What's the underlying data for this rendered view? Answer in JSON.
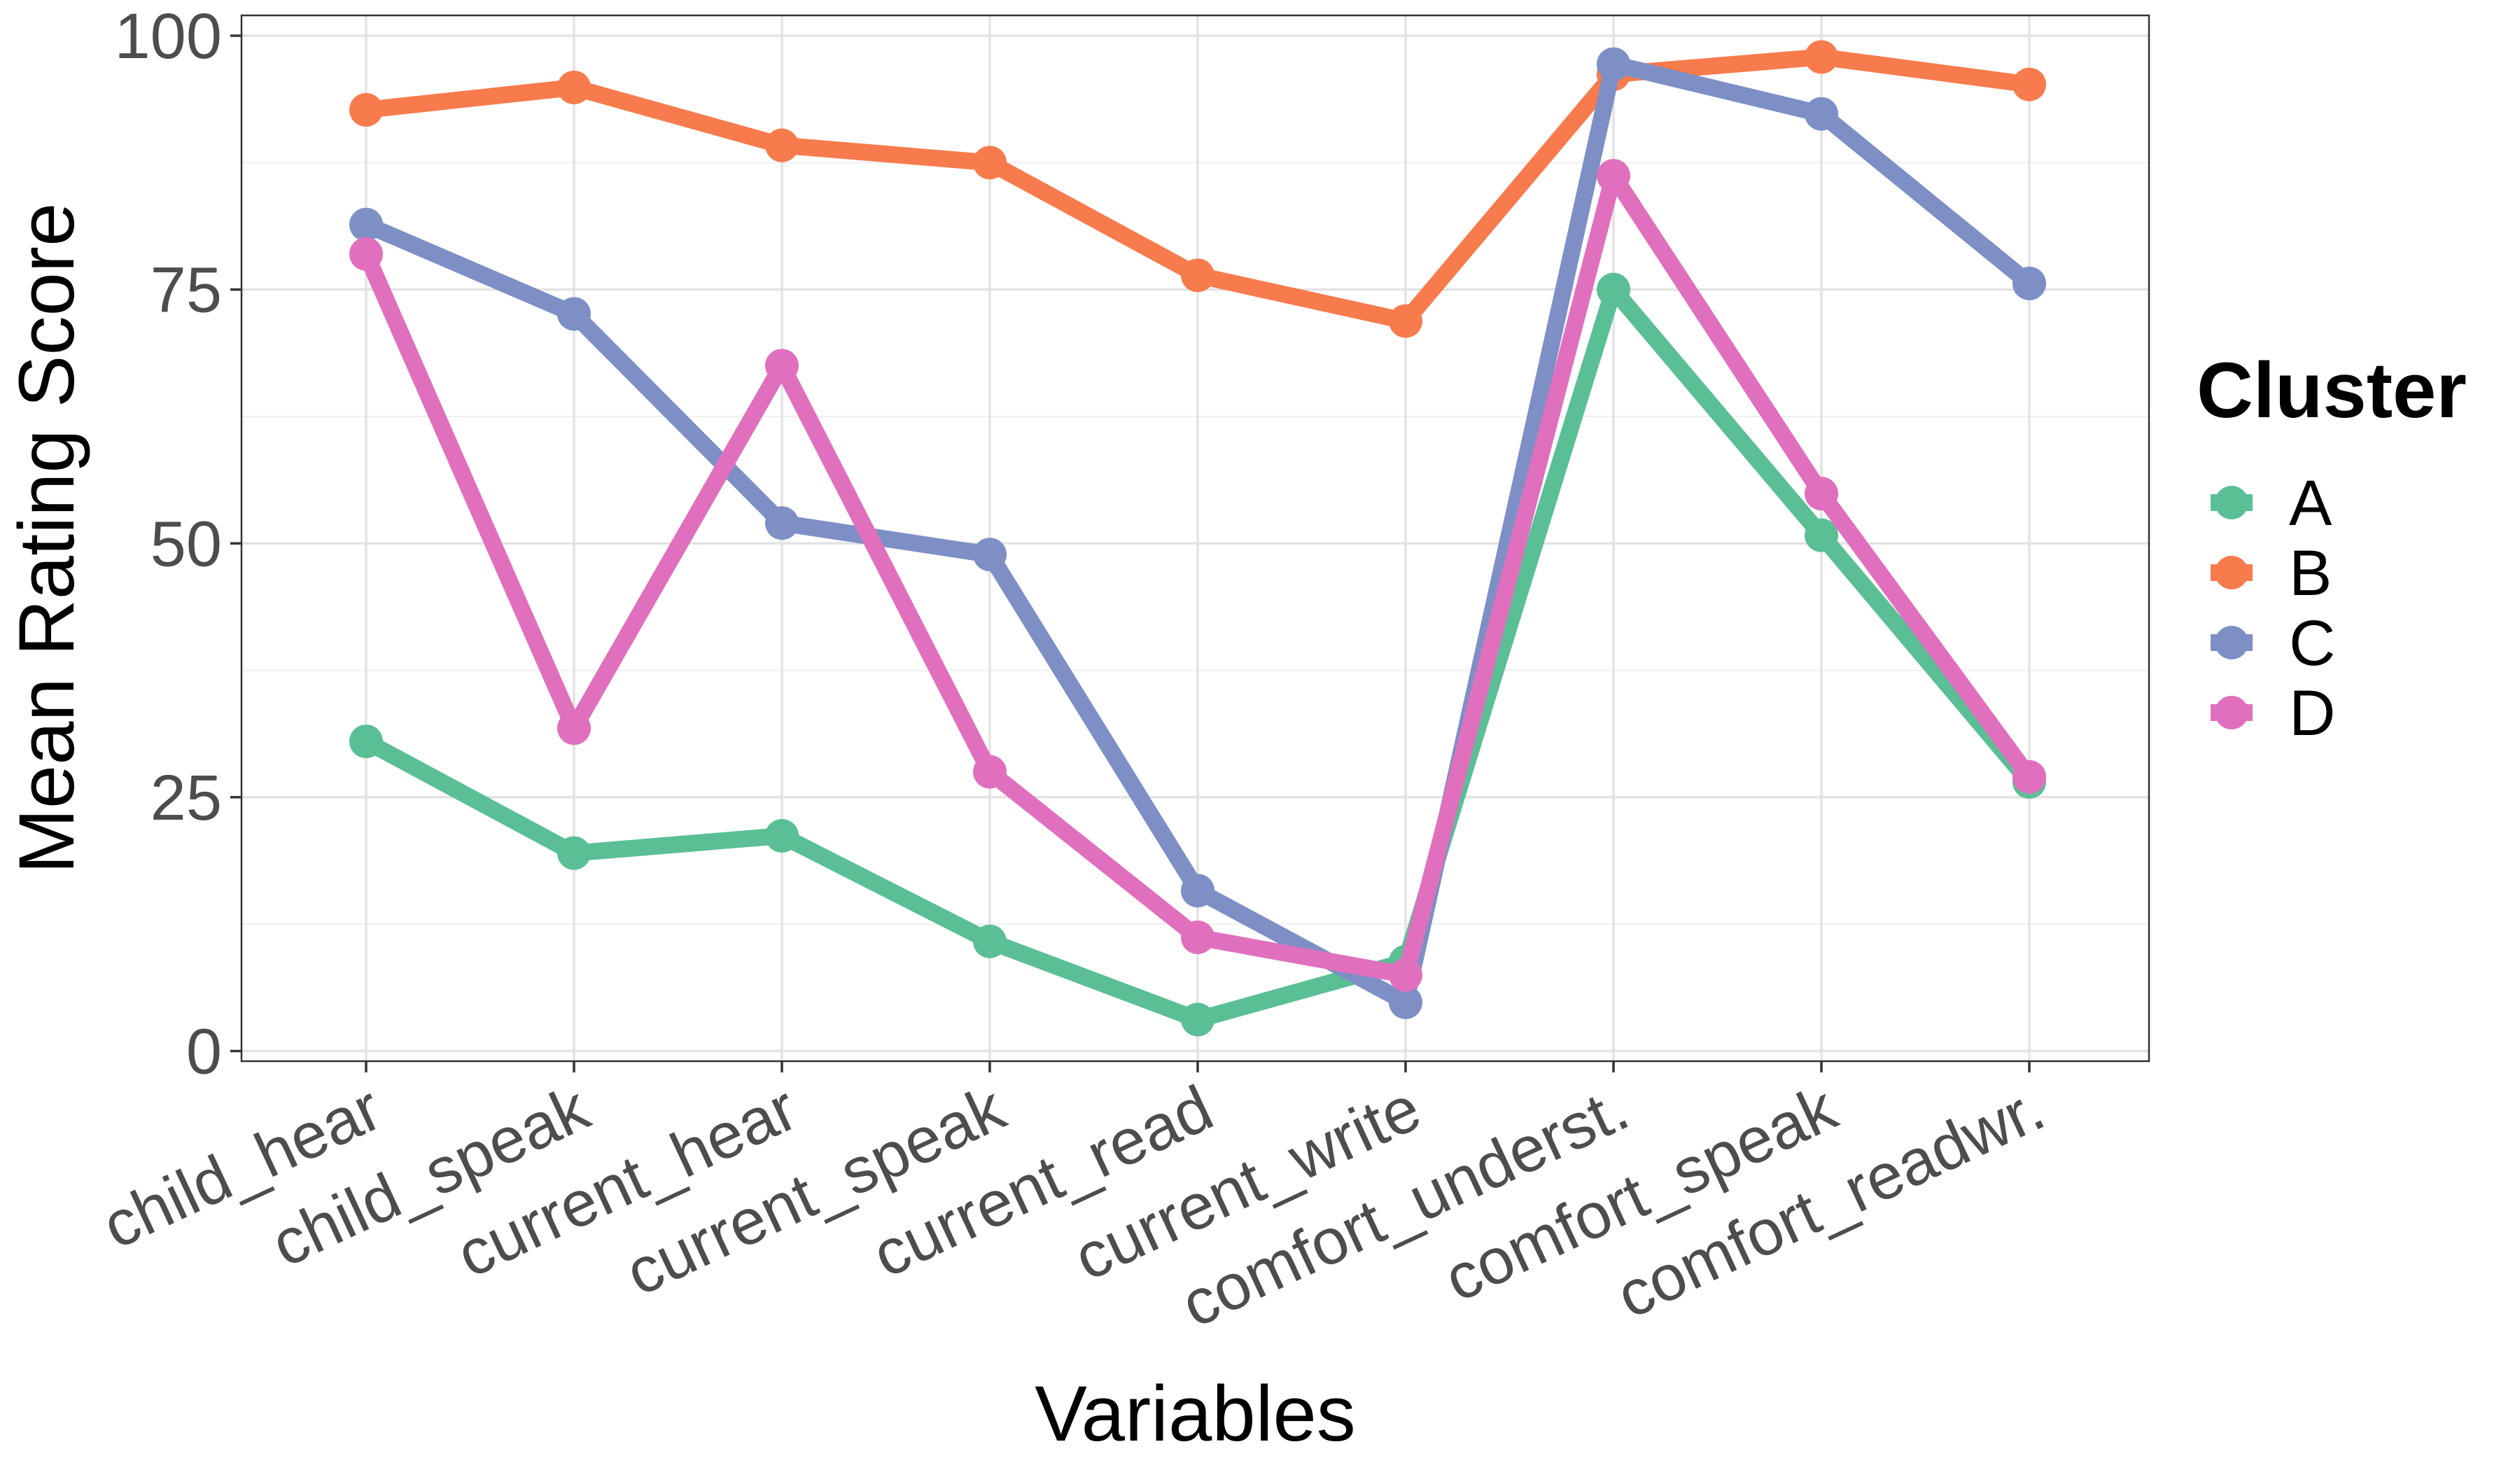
{
  "chart_data": {
    "type": "line",
    "title": "",
    "xlabel": "Variables",
    "ylabel": "Mean Rating Score",
    "categories": [
      "child_hear",
      "child_speak",
      "current_hear",
      "current_speak",
      "current_read",
      "current_write",
      "comfort_underst.",
      "comfort_speak",
      "comfort_readwr."
    ],
    "yticks": [
      0,
      25,
      50,
      75,
      100
    ],
    "ylim": [
      -1,
      102
    ],
    "grid": true,
    "legend": {
      "title": "Cluster",
      "position": "right"
    },
    "series": [
      {
        "name": "A",
        "color": "#5bbf96",
        "values": [
          30.5,
          19.5,
          21.2,
          10.8,
          3.1,
          8.8,
          75.0,
          50.8,
          26.5
        ]
      },
      {
        "name": "B",
        "color": "#f77b4d",
        "values": [
          92.7,
          94.9,
          89.2,
          87.5,
          76.4,
          71.9,
          96.2,
          97.9,
          95.2
        ]
      },
      {
        "name": "C",
        "color": "#7d8fc5",
        "values": [
          81.4,
          72.6,
          52.0,
          48.9,
          15.8,
          4.8,
          97.2,
          92.3,
          75.6
        ]
      },
      {
        "name": "D",
        "color": "#e070be",
        "values": [
          78.5,
          31.8,
          67.5,
          27.5,
          11.2,
          7.5,
          86.2,
          54.9,
          27.0
        ]
      }
    ]
  }
}
